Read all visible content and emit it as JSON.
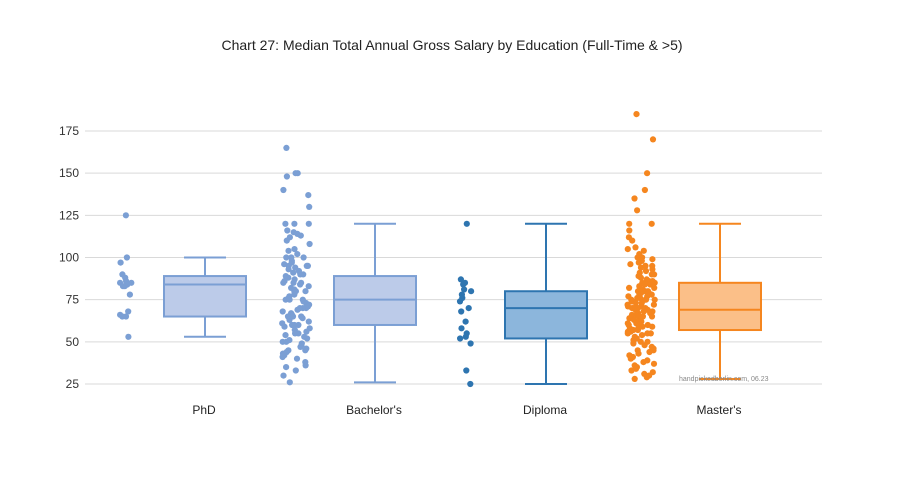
{
  "chart_data": {
    "type": "boxplot",
    "title": "Chart 27: Median Total Annual Gross Salary by Education (Full-Time & >5)",
    "xlabel": "",
    "ylabel": "",
    "ylim": [
      22,
      190
    ],
    "yticks": [
      25,
      50,
      75,
      100,
      125,
      150,
      175
    ],
    "grid": true,
    "watermark": "handpickedberlin.com, 06.23",
    "categories": [
      {
        "name": "PhD",
        "color": "#7b9fd4",
        "fill": "#bccbe9",
        "stats": {
          "min": 53,
          "q1": 65,
          "median": 84,
          "q3": 89,
          "max": 100
        },
        "points": [
          125,
          100,
          97,
          90,
          88,
          86,
          85,
          85,
          84,
          83,
          83,
          78,
          68,
          66,
          65,
          65,
          53
        ]
      },
      {
        "name": "Bachelor's",
        "color": "#7b9fd4",
        "fill": "#bccbe9",
        "stats": {
          "min": 26,
          "q1": 60,
          "median": 75,
          "q3": 89,
          "max": 120
        },
        "points": [
          165,
          150,
          150,
          148,
          140,
          137,
          130,
          120,
          120,
          120,
          116,
          115,
          114,
          113,
          112,
          110,
          108,
          105,
          104,
          102,
          100,
          100,
          100,
          98,
          97,
          96,
          95,
          95,
          95,
          94,
          93,
          92,
          91,
          90,
          90,
          89,
          88,
          87,
          86,
          85,
          85,
          85,
          84,
          83,
          82,
          81,
          80,
          80,
          80,
          79,
          78,
          77,
          76,
          75,
          75,
          75,
          74,
          73,
          72,
          71,
          70,
          70,
          70,
          69,
          68,
          67,
          66,
          65,
          65,
          65,
          64,
          63,
          62,
          61,
          60,
          60,
          60,
          59,
          58,
          57,
          56,
          55,
          55,
          54,
          53,
          52,
          51,
          50,
          50,
          49,
          48,
          47,
          46,
          45,
          45,
          44,
          43,
          42,
          41,
          40,
          38,
          36,
          35,
          33,
          30,
          26
        ]
      },
      {
        "name": "Diploma",
        "color": "#2e75b0",
        "fill": "#8cb6dc",
        "stats": {
          "min": 25,
          "q1": 52,
          "median": 70,
          "q3": 80,
          "max": 120
        },
        "points": [
          120,
          87,
          85,
          84,
          81,
          80,
          78,
          76,
          74,
          70,
          68,
          62,
          58,
          55,
          53,
          52,
          49,
          33,
          25
        ]
      },
      {
        "name": "Master's",
        "color": "#f5861f",
        "fill": "#fbbf88",
        "stats": {
          "min": 28,
          "q1": 57,
          "median": 69,
          "q3": 85,
          "max": 120
        },
        "points": [
          185,
          170,
          150,
          140,
          135,
          128,
          120,
          120,
          116,
          112,
          110,
          106,
          105,
          104,
          102,
          100,
          100,
          99,
          98,
          97,
          96,
          95,
          95,
          94,
          93,
          92,
          91,
          90,
          90,
          89,
          88,
          87,
          86,
          86,
          85,
          85,
          84,
          84,
          83,
          82,
          82,
          81,
          80,
          80,
          80,
          79,
          79,
          78,
          78,
          77,
          77,
          76,
          76,
          75,
          75,
          75,
          75,
          74,
          74,
          73,
          73,
          72,
          72,
          71,
          71,
          70,
          70,
          70,
          70,
          69,
          69,
          68,
          68,
          67,
          67,
          66,
          66,
          65,
          65,
          65,
          64,
          64,
          63,
          63,
          62,
          62,
          61,
          61,
          60,
          60,
          60,
          59,
          59,
          58,
          58,
          57,
          57,
          56,
          56,
          55,
          55,
          55,
          54,
          53,
          52,
          51,
          50,
          50,
          49,
          48,
          47,
          46,
          45,
          45,
          44,
          43,
          42,
          41,
          40,
          39,
          38,
          37,
          36,
          35,
          34,
          33,
          32,
          31,
          30,
          29,
          28
        ]
      }
    ]
  }
}
